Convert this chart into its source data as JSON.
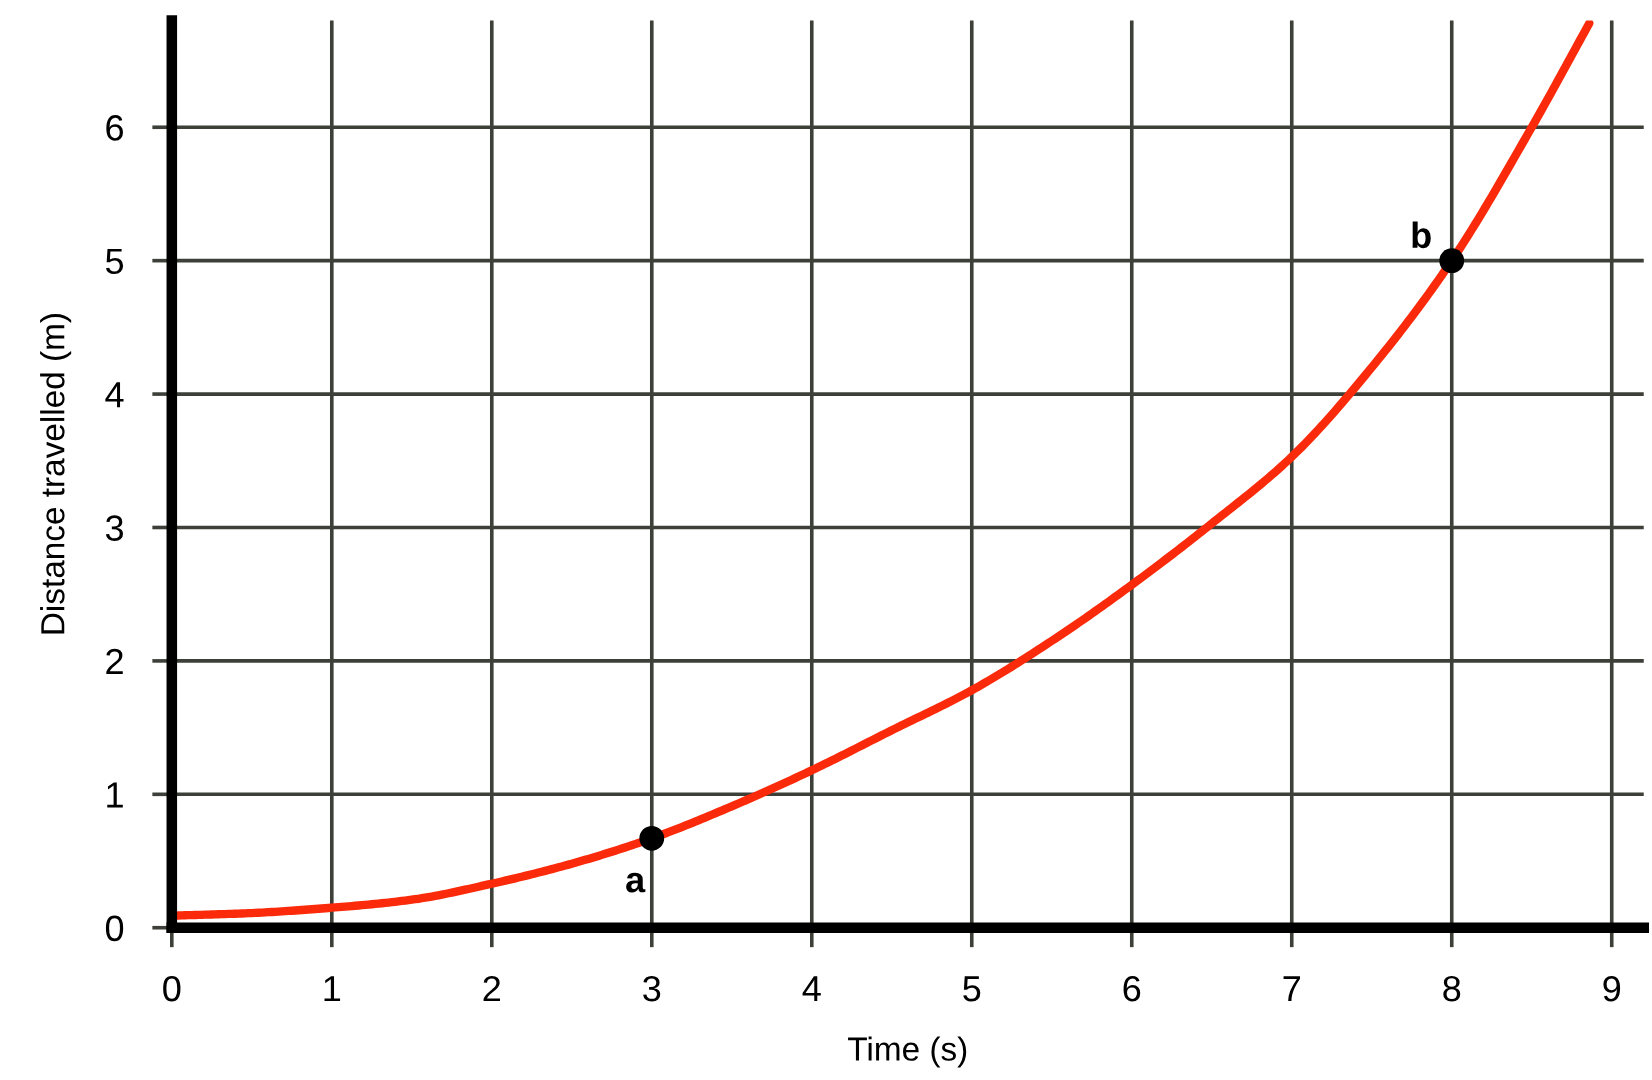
{
  "chart_data": {
    "type": "line",
    "xlabel": "Time (s)",
    "ylabel": "Distance travelled (m)",
    "xlim": [
      0,
      9.2
    ],
    "ylim": [
      0,
      6.8
    ],
    "xticks": [
      0,
      1,
      2,
      3,
      4,
      5,
      6,
      7,
      8,
      9
    ],
    "yticks": [
      0,
      1,
      2,
      3,
      4,
      5,
      6
    ],
    "grid": true,
    "series": [
      {
        "color": "#fa2a0a",
        "x": [
          0,
          0.5,
          1,
          1.5,
          2,
          2.5,
          3,
          3.5,
          4,
          4.5,
          5,
          5.5,
          6,
          6.5,
          7,
          7.5,
          8,
          8.5,
          8.86
        ],
        "values": [
          0.09,
          0.11,
          0.15,
          0.21,
          0.33,
          0.48,
          0.67,
          0.91,
          1.18,
          1.48,
          1.78,
          2.15,
          2.57,
          3.03,
          3.53,
          4.2,
          5,
          6,
          6.78
        ]
      },
      {
        "type": "scatter",
        "color": "#000000",
        "x": [
          3,
          8
        ],
        "values": [
          0.67,
          5
        ],
        "marker": "circle"
      }
    ],
    "annotations": [
      {
        "text": "a",
        "x": 3,
        "y": 0.67
      },
      {
        "text": "b",
        "x": 8,
        "y": 5
      }
    ]
  }
}
